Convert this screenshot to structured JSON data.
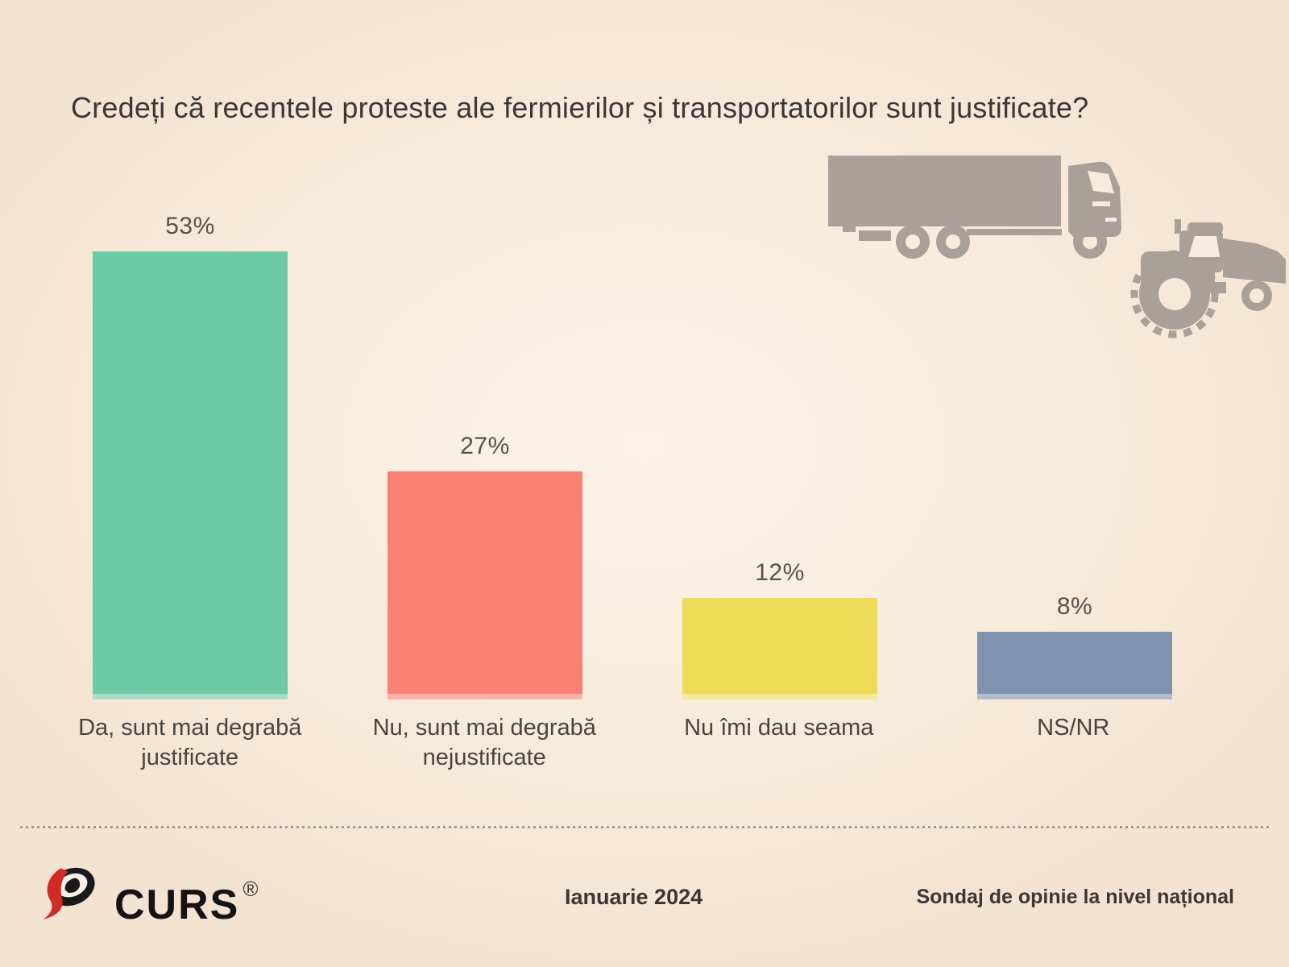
{
  "slide": {
    "title": "Credeți că recentele proteste ale fermierilor și transportatorilor sunt justificate?"
  },
  "chart_data": {
    "type": "bar",
    "title": "Credeți că recentele proteste ale fermierilor și transportatorilor sunt justificate?",
    "categories": [
      "Da, sunt mai degrabă justificate",
      "Nu, sunt mai degrabă nejustificate",
      "Nu îmi dau seama",
      "NS/NR"
    ],
    "values": [
      53,
      27,
      12,
      8
    ],
    "value_labels": [
      "53%",
      "27%",
      "12%",
      "8%"
    ],
    "bar_colors": [
      "#6ecaa6",
      "#f98173",
      "#ecdc57",
      "#8093ae"
    ],
    "unit": "%",
    "ylim": [
      0,
      58
    ],
    "grid": false,
    "legend": "none",
    "xlabel": "",
    "ylabel": ""
  },
  "illustration": {
    "truck_icon": "truck-silhouette",
    "tractor_icon": "tractor-silhouette",
    "color": "#a9a197"
  },
  "divider": {
    "style": "dotted",
    "color": "#8f867c"
  },
  "footer": {
    "logo": {
      "text": "CURS",
      "registered_mark": "®",
      "swoosh_red": "#d02b24",
      "swoosh_black": "#1a1a1a"
    },
    "date": "Ianuarie 2024",
    "note": "Sondaj de opinie la nivel național"
  },
  "background": {
    "center": "#fbf2e8",
    "edge": "#f5e3d1"
  }
}
